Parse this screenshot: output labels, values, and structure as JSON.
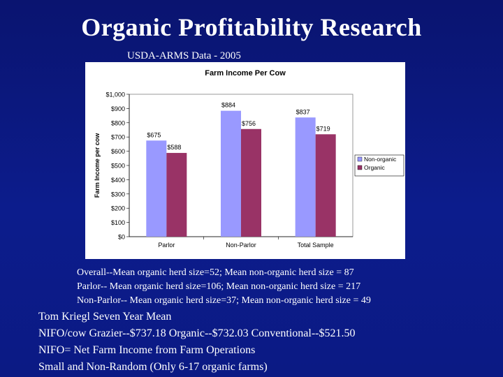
{
  "slide": {
    "title": "Organic Profitability Research",
    "source": "USDA-ARMS Data - 2005",
    "notes": [
      "Overall--Mean organic herd size=52; Mean non-organic herd size = 87",
      "Parlor-- Mean organic herd size=106; Mean non-organic herd size = 217",
      "Non-Parlor-- Mean organic herd size=37; Mean non-organic herd size = 49"
    ],
    "body": [
      "Tom Kriegl  Seven Year Mean",
      "NIFO/cow  Grazier--$737.18   Organic--$732.03  Conventional--$521.50",
      "NIFO= Net  Farm Income from Farm Operations",
      "Small  and Non-Random (Only 6-17 organic farms)"
    ]
  },
  "chart_data": {
    "type": "bar",
    "title": "Farm Income Per Cow",
    "xlabel": "",
    "ylabel": "Farm Income per cow",
    "categories": [
      "Parlor",
      "Non-Parlor",
      "Total Sample"
    ],
    "series": [
      {
        "name": "Non-organic",
        "values": [
          675,
          884,
          837
        ],
        "labels": [
          "$675",
          "$884",
          "$837"
        ],
        "color": "#9999ff"
      },
      {
        "name": "Organic",
        "values": [
          588,
          756,
          719
        ],
        "labels": [
          "$588",
          "$756",
          "$719"
        ],
        "color": "#993366"
      }
    ],
    "ylim": [
      0,
      1000
    ],
    "yticks": [
      0,
      100,
      200,
      300,
      400,
      500,
      600,
      700,
      800,
      900,
      1000
    ],
    "ytick_labels": [
      "$0",
      "$100",
      "$200",
      "$300",
      "$400",
      "$500",
      "$600",
      "$700",
      "$800",
      "$900",
      "$1,000"
    ],
    "grid": false,
    "legend": "right"
  }
}
